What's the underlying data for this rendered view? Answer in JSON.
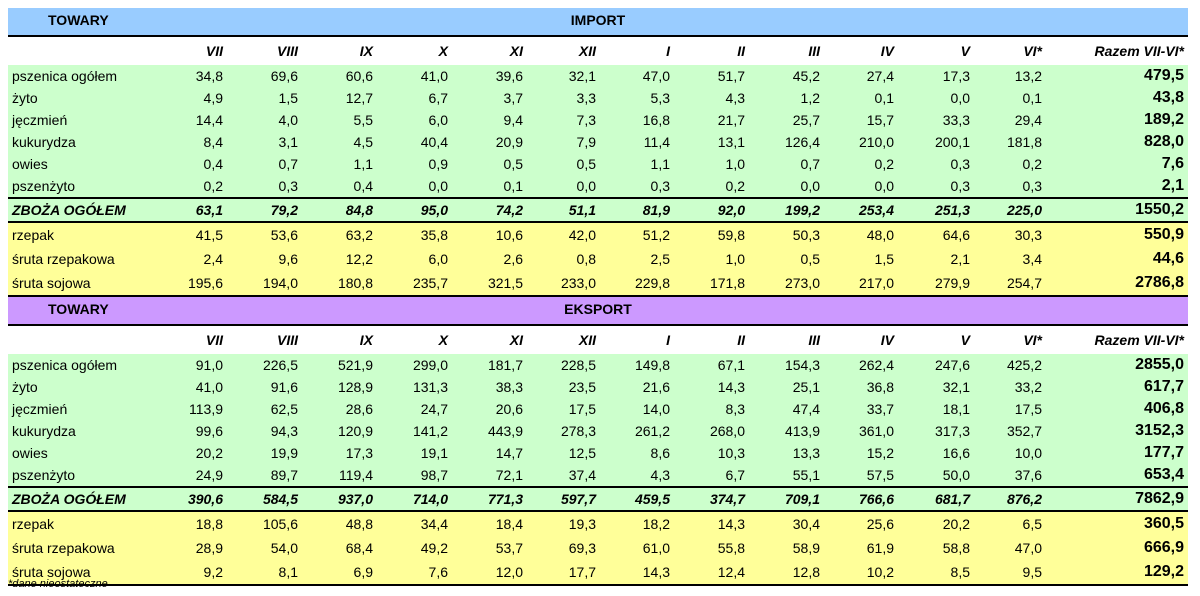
{
  "import": {
    "towary_label": "TOWARY",
    "title": "IMPORT",
    "columns": [
      "VII",
      "VIII",
      "IX",
      "X",
      "XI",
      "XII",
      "I",
      "II",
      "III",
      "IV",
      "V",
      "VI*",
      "Razem VII-VI*"
    ],
    "rows": [
      {
        "name": "pszenica ogółem",
        "values": [
          "34,8",
          "69,6",
          "60,6",
          "41,0",
          "39,6",
          "32,1",
          "47,0",
          "51,7",
          "45,2",
          "27,4",
          "17,3",
          "13,2"
        ],
        "total": "479,5"
      },
      {
        "name": "żyto",
        "values": [
          "4,9",
          "1,5",
          "12,7",
          "6,7",
          "3,7",
          "3,3",
          "5,3",
          "4,3",
          "1,2",
          "0,1",
          "0,0",
          "0,1"
        ],
        "total": "43,8"
      },
      {
        "name": "jęczmień",
        "values": [
          "14,4",
          "4,0",
          "5,5",
          "6,0",
          "9,4",
          "7,3",
          "16,8",
          "21,7",
          "25,7",
          "15,7",
          "33,3",
          "29,4"
        ],
        "total": "189,2"
      },
      {
        "name": "kukurydza",
        "values": [
          "8,4",
          "3,1",
          "4,5",
          "40,4",
          "20,9",
          "7,9",
          "11,4",
          "13,1",
          "126,4",
          "210,0",
          "200,1",
          "181,8"
        ],
        "total": "828,0"
      },
      {
        "name": "owies",
        "values": [
          "0,4",
          "0,7",
          "1,1",
          "0,9",
          "0,5",
          "0,5",
          "1,1",
          "1,0",
          "0,7",
          "0,2",
          "0,3",
          "0,2"
        ],
        "total": "7,6"
      },
      {
        "name": "pszenżyto",
        "values": [
          "0,2",
          "0,3",
          "0,4",
          "0,0",
          "0,1",
          "0,0",
          "0,3",
          "0,2",
          "0,0",
          "0,0",
          "0,3",
          "0,3"
        ],
        "total": "2,1"
      }
    ],
    "summary": {
      "name": "ZBOŻA OGÓŁEM",
      "values": [
        "63,1",
        "79,2",
        "84,8",
        "95,0",
        "74,2",
        "51,1",
        "81,9",
        "92,0",
        "199,2",
        "253,4",
        "251,3",
        "225,0"
      ],
      "total": "1550,2"
    },
    "other": [
      {
        "name": "rzepak",
        "values": [
          "41,5",
          "53,6",
          "63,2",
          "35,8",
          "10,6",
          "42,0",
          "51,2",
          "59,8",
          "50,3",
          "48,0",
          "64,6",
          "30,3"
        ],
        "total": "550,9"
      },
      {
        "name": "śruta rzepakowa",
        "values": [
          "2,4",
          "9,6",
          "12,2",
          "6,0",
          "2,6",
          "0,8",
          "2,5",
          "1,0",
          "0,5",
          "1,5",
          "2,1",
          "3,4"
        ],
        "total": "44,6"
      },
      {
        "name": "śruta sojowa",
        "values": [
          "195,6",
          "194,0",
          "180,8",
          "235,7",
          "321,5",
          "233,0",
          "229,8",
          "171,8",
          "273,0",
          "217,0",
          "279,9",
          "254,7"
        ],
        "total": "2786,8"
      }
    ]
  },
  "export": {
    "towary_label": "TOWARY",
    "title": "EKSPORT",
    "columns": [
      "VII",
      "VIII",
      "IX",
      "X",
      "XI",
      "XII",
      "I",
      "II",
      "III",
      "IV",
      "V",
      "VI*",
      "Razem VII-VI*"
    ],
    "rows": [
      {
        "name": "pszenica ogółem",
        "values": [
          "91,0",
          "226,5",
          "521,9",
          "299,0",
          "181,7",
          "228,5",
          "149,8",
          "67,1",
          "154,3",
          "262,4",
          "247,6",
          "425,2"
        ],
        "total": "2855,0"
      },
      {
        "name": "żyto",
        "values": [
          "41,0",
          "91,6",
          "128,9",
          "131,3",
          "38,3",
          "23,5",
          "21,6",
          "14,3",
          "25,1",
          "36,8",
          "32,1",
          "33,2"
        ],
        "total": "617,7"
      },
      {
        "name": "jęczmień",
        "values": [
          "113,9",
          "62,5",
          "28,6",
          "24,7",
          "20,6",
          "17,5",
          "14,0",
          "8,3",
          "47,4",
          "33,7",
          "18,1",
          "17,5"
        ],
        "total": "406,8"
      },
      {
        "name": "kukurydza",
        "values": [
          "99,6",
          "94,3",
          "120,9",
          "141,2",
          "443,9",
          "278,3",
          "261,2",
          "268,0",
          "413,9",
          "361,0",
          "317,3",
          "352,7"
        ],
        "total": "3152,3"
      },
      {
        "name": "owies",
        "values": [
          "20,2",
          "19,9",
          "17,3",
          "19,1",
          "14,7",
          "12,5",
          "8,6",
          "10,3",
          "13,3",
          "15,2",
          "16,6",
          "10,0"
        ],
        "total": "177,7"
      },
      {
        "name": "pszenżyto",
        "values": [
          "24,9",
          "89,7",
          "119,4",
          "98,7",
          "72,1",
          "37,4",
          "4,3",
          "6,7",
          "55,1",
          "57,5",
          "50,0",
          "37,6"
        ],
        "total": "653,4"
      }
    ],
    "summary": {
      "name": "ZBOŻA OGÓŁEM",
      "values": [
        "390,6",
        "584,5",
        "937,0",
        "714,0",
        "771,3",
        "597,7",
        "459,5",
        "374,7",
        "709,1",
        "766,6",
        "681,7",
        "876,2"
      ],
      "total": "7862,9"
    },
    "other": [
      {
        "name": "rzepak",
        "values": [
          "18,8",
          "105,6",
          "48,8",
          "34,4",
          "18,4",
          "19,3",
          "18,2",
          "14,3",
          "30,4",
          "25,6",
          "20,2",
          "6,5"
        ],
        "total": "360,5"
      },
      {
        "name": "śruta rzepakowa",
        "values": [
          "28,9",
          "54,0",
          "68,4",
          "49,2",
          "53,7",
          "69,3",
          "61,0",
          "55,8",
          "58,9",
          "61,9",
          "58,8",
          "47,0"
        ],
        "total": "666,9"
      },
      {
        "name": "śruta sojowa",
        "values": [
          "9,2",
          "8,1",
          "6,9",
          "7,6",
          "12,0",
          "17,7",
          "14,3",
          "12,4",
          "12,8",
          "10,2",
          "8,5",
          "9,5"
        ],
        "total": "129,2"
      }
    ]
  },
  "footnote": "*dane nieostateczne",
  "colors": {
    "import_header": "#99ccff",
    "export_header": "#cc99ff",
    "grain_rows": "#ccffcc",
    "oilseed_rows": "#ffff99"
  }
}
